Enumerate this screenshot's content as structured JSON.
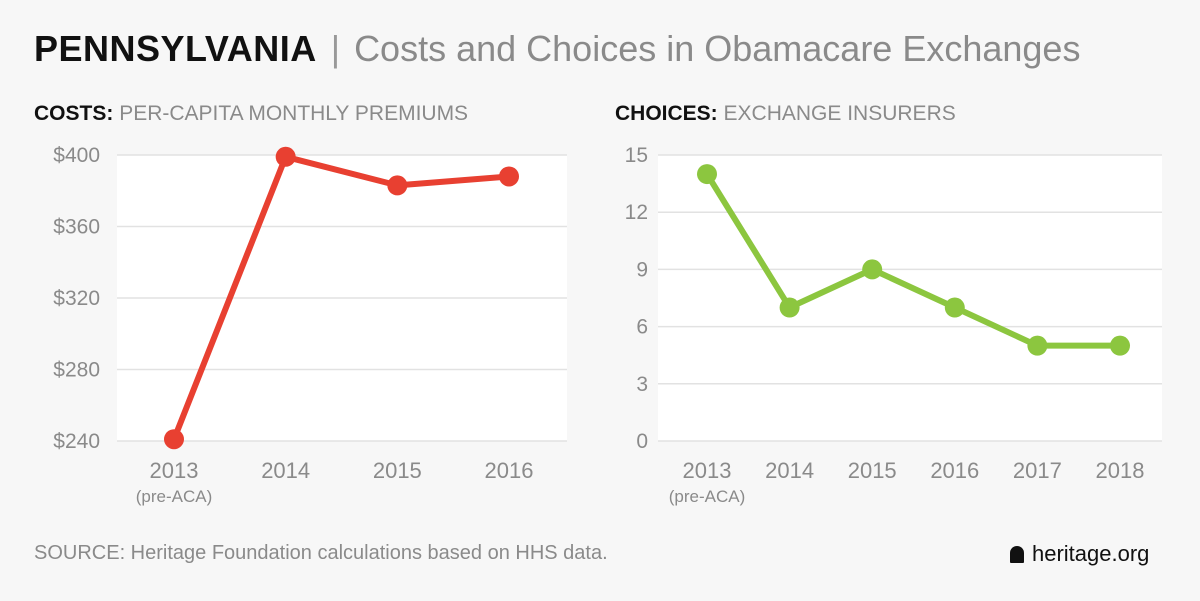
{
  "header": {
    "state": "PENNSYLVANIA",
    "separator": "|",
    "subtitle": "Costs and Choices in Obamacare Exchanges"
  },
  "chart_data": [
    {
      "type": "line",
      "title_key": "COSTS:",
      "title": "PER-CAPITA MONTHLY PREMIUMS",
      "categories": [
        "2013",
        "2014",
        "2015",
        "2016"
      ],
      "category_sublabels": [
        "(pre-ACA)",
        "",
        "",
        ""
      ],
      "values": [
        241,
        399,
        383,
        388
      ],
      "yticks": [
        240,
        280,
        320,
        360,
        400
      ],
      "ytick_labels": [
        "$240",
        "$280",
        "$320",
        "$360",
        "$400"
      ],
      "ylim": [
        240,
        400
      ],
      "color": "#e84031",
      "grid": true,
      "xlabel": "",
      "ylabel": ""
    },
    {
      "type": "line",
      "title_key": "CHOICES:",
      "title": "EXCHANGE INSURERS",
      "categories": [
        "2013",
        "2014",
        "2015",
        "2016",
        "2017",
        "2018"
      ],
      "category_sublabels": [
        "(pre-ACA)",
        "",
        "",
        "",
        "",
        ""
      ],
      "values": [
        14,
        7,
        9,
        7,
        5,
        5
      ],
      "yticks": [
        0,
        3,
        6,
        9,
        12,
        15
      ],
      "ytick_labels": [
        "0",
        "3",
        "6",
        "9",
        "12",
        "15"
      ],
      "ylim": [
        0,
        15
      ],
      "color": "#8cc63f",
      "grid": true,
      "xlabel": "",
      "ylabel": ""
    }
  ],
  "footer": {
    "source": "SOURCE: Heritage Foundation calculations based on HHS data.",
    "logo_icon": "liberty-bell-icon",
    "logo_text": "heritage.org"
  }
}
